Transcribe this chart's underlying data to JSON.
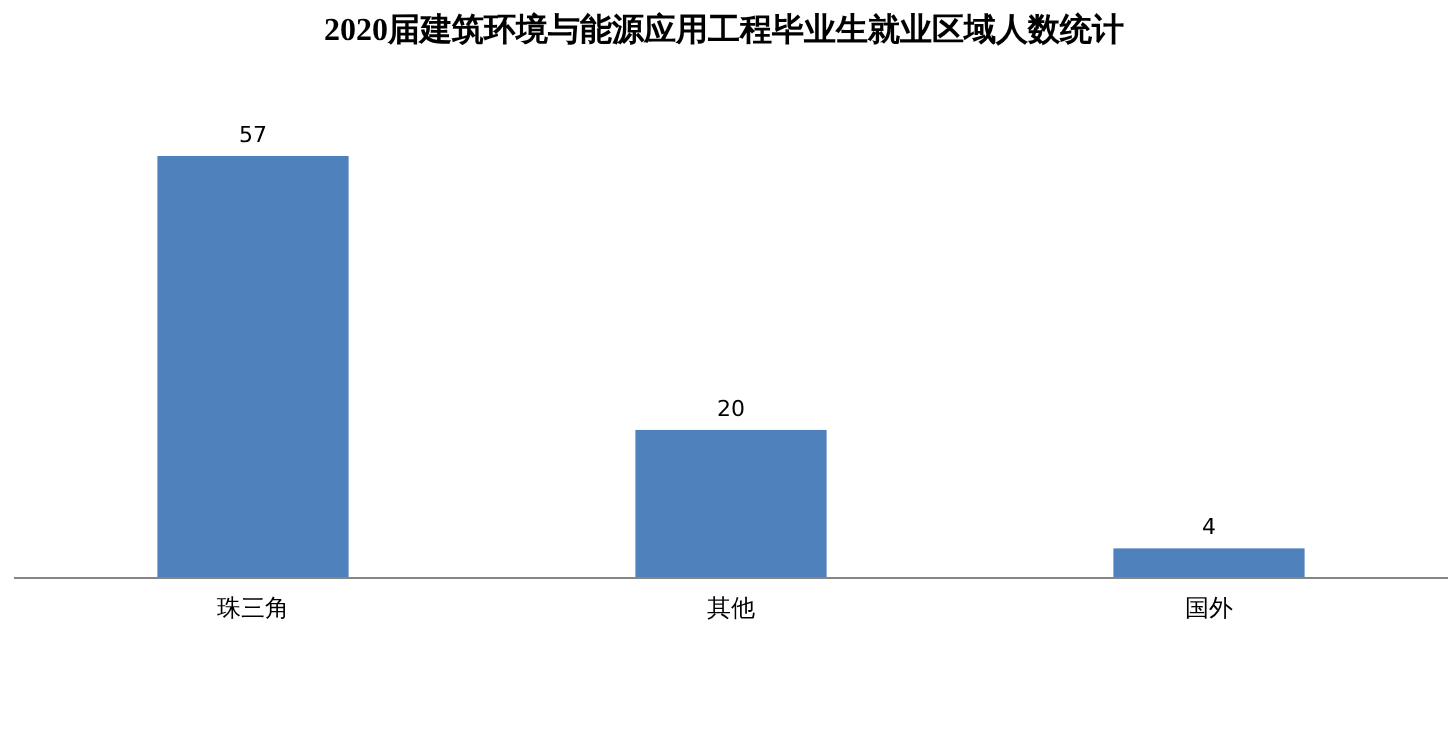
{
  "chart_data": {
    "type": "bar",
    "title": "2020届建筑环境与能源应用工程毕业生就业区域人数统计",
    "categories": [
      "珠三角",
      "其他",
      "国外"
    ],
    "values": [
      57,
      20,
      4
    ],
    "color": "#4f81bd",
    "data_labels": true
  }
}
